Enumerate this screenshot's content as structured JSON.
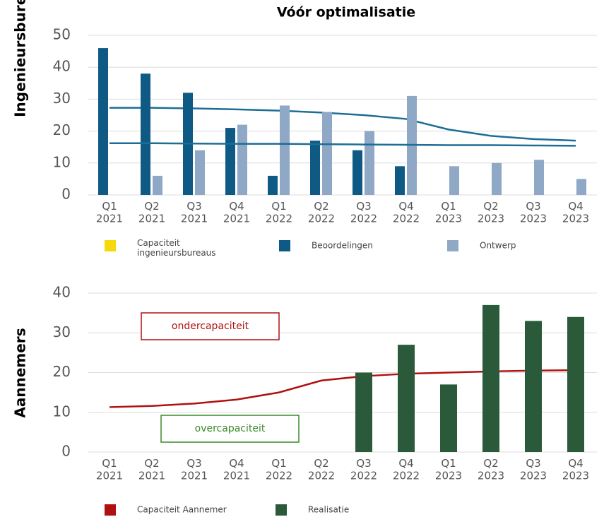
{
  "chart_data": [
    {
      "type": "bar",
      "title": "Vóór optimalisatie",
      "y_label": "Ingenieursbureaus",
      "categories": [
        "Q1 2021",
        "Q2 2021",
        "Q3 2021",
        "Q4 2021",
        "Q1 2022",
        "Q2 2022",
        "Q3 2022",
        "Q4 2022",
        "Q1 2023",
        "Q2 2023",
        "Q3 2023",
        "Q4 2023"
      ],
      "ylim": [
        0,
        50
      ],
      "yticks": [
        0,
        10,
        20,
        30,
        40,
        50
      ],
      "grid": true,
      "series": [
        {
          "name": "Capaciteit ingenieursbureaus",
          "color": "#f5d90a",
          "kind": "line",
          "line_color": "#1d6d96",
          "values": [
            27.3,
            27.3,
            27.1,
            26.8,
            26.4,
            25.8,
            25,
            23.8,
            20.5,
            18.5,
            17.5,
            17
          ]
        },
        {
          "name": "Beoordelingen",
          "color": "#0f5a84",
          "kind": "bar",
          "values": [
            46,
            38,
            32,
            21,
            6,
            17,
            14,
            9,
            null,
            null,
            null,
            null
          ]
        },
        {
          "name": "Ontwerp",
          "color": "#8ea8c6",
          "kind": "bar",
          "values": [
            null,
            6,
            14,
            22,
            28,
            26,
            20,
            31,
            9,
            10,
            11,
            5
          ]
        }
      ],
      "lines": [
        {
          "color": "#1d6d96",
          "values": [
            16.2,
            16.2,
            16.1,
            16,
            16,
            15.9,
            15.8,
            15.7,
            15.6,
            15.6,
            15.5,
            15.4
          ]
        }
      ]
    },
    {
      "type": "bar",
      "y_label": "Aannemers",
      "categories": [
        "Q1 2021",
        "Q2 2021",
        "Q3 2021",
        "Q4 2021",
        "Q1 2022",
        "Q2 2022",
        "Q3 2022",
        "Q4 2022",
        "Q1 2023",
        "Q2 2023",
        "Q3 2023",
        "Q4 2023"
      ],
      "ylim": [
        0,
        40
      ],
      "yticks": [
        0,
        10,
        20,
        30,
        40
      ],
      "grid": true,
      "series": [
        {
          "name": "Capaciteit Aannemer",
          "color": "#b01010",
          "kind": "line",
          "line_color": "#b01010",
          "values": [
            11.3,
            11.6,
            12.2,
            13.2,
            15,
            18,
            19.1,
            19.7,
            20,
            20.3,
            20.5,
            20.6
          ]
        },
        {
          "name": "Realisatie",
          "color": "#2b5a3b",
          "kind": "bar",
          "values": [
            null,
            null,
            null,
            null,
            null,
            null,
            20,
            27,
            17,
            37,
            33,
            34
          ]
        }
      ],
      "annotations": [
        {
          "text": "ondercapaciteit",
          "color": "#b01010"
        },
        {
          "text": "overcapaciteit",
          "color": "#3a8a2a"
        }
      ]
    }
  ]
}
